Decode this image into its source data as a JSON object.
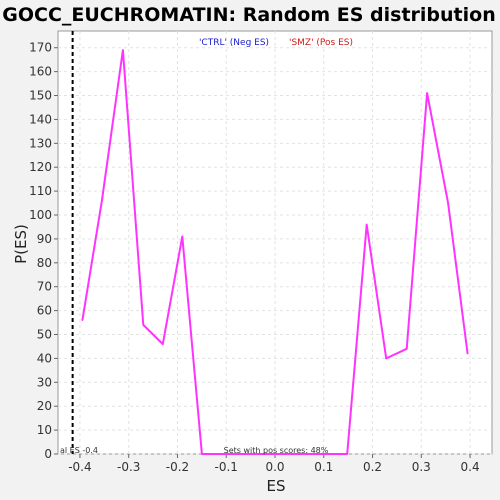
{
  "chart_data": {
    "type": "line",
    "title": "GOCC_EUCHROMATIN: Random ES distribution",
    "xlabel": "ES",
    "ylabel": "P(ES)",
    "xlim": [
      -0.445,
      0.445
    ],
    "ylim": [
      0,
      177
    ],
    "x_ticks": [
      -0.4,
      -0.3,
      -0.2,
      -0.1,
      0.0,
      0.1,
      0.2,
      0.3,
      0.4
    ],
    "x_tick_labels": [
      "-0.4",
      "-0.3",
      "-0.2",
      "-0.1",
      "0.0",
      "0.1",
      "0.2",
      "0.3",
      "0.4"
    ],
    "y_ticks": [
      0,
      10,
      20,
      30,
      40,
      50,
      60,
      70,
      80,
      90,
      100,
      110,
      120,
      130,
      140,
      150,
      160,
      170
    ],
    "y_tick_labels": [
      "0",
      "10",
      "20",
      "30",
      "40",
      "50",
      "60",
      "70",
      "80",
      "90",
      "100",
      "110",
      "120",
      "130",
      "140",
      "150",
      "160",
      "170"
    ],
    "grid": true,
    "legend_position": "top-center",
    "legend": [
      {
        "label": "'CTRL' (Neg ES)",
        "color": "#1a1ad0"
      },
      {
        "label": "'SMZ' (Pos ES)",
        "color": "#d01a1a"
      }
    ],
    "series": [
      {
        "color": "#ff33ff",
        "x": [
          -0.395,
          -0.355,
          -0.312,
          -0.27,
          -0.23,
          -0.19,
          -0.15,
          -0.11,
          0.11,
          0.148,
          0.188,
          0.228,
          0.27,
          0.312,
          0.355,
          0.395
        ],
        "y": [
          56,
          106,
          169,
          54,
          46,
          91,
          0,
          0,
          0,
          0,
          96,
          40,
          44,
          151,
          105,
          42
        ]
      }
    ],
    "vline": {
      "x": -0.415,
      "style": "dashed",
      "color": "#000000"
    },
    "annotations": {
      "actual_es": "al ES -0.4",
      "pos_scores": "Sets with pos scores: 48%"
    }
  }
}
